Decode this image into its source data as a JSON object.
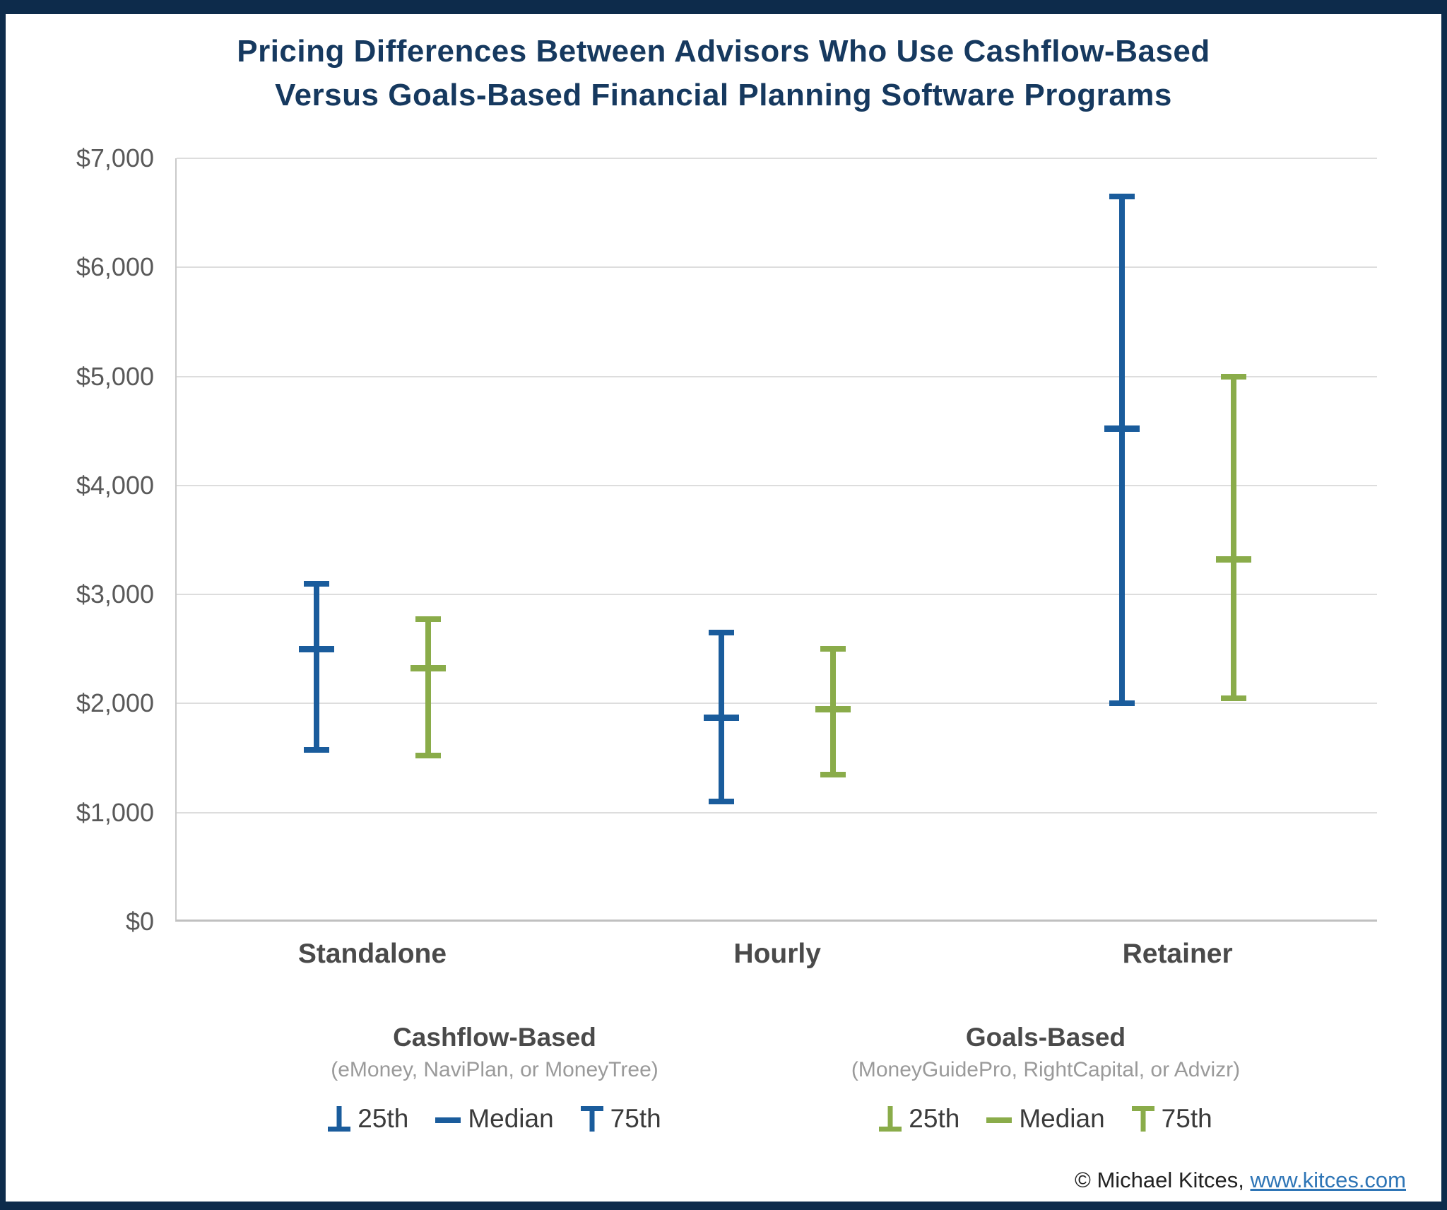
{
  "title": {
    "line1": "Pricing Differences Between Advisors Who Use Cashflow-Based",
    "line2": "Versus Goals-Based Financial Planning Software Programs"
  },
  "footer": {
    "copyright": "© Michael Kitces, ",
    "link_text": "www.kitces.com"
  },
  "colors": {
    "cashflow_blue": "#1A5C9C",
    "goals_green": "#8AAC4A",
    "title_navy": "#16395F",
    "frame_navy": "#0D2B4B",
    "gridline_gray": "#DDDDDD",
    "axis_gray": "#C0C0C0",
    "link_blue": "#2E75B6"
  },
  "chart_data": {
    "type": "errorbar",
    "title": "Pricing Differences Between Advisors Who Use Cashflow-Based Versus Goals-Based Financial Planning Software Programs",
    "categories": [
      "Standalone",
      "Hourly",
      "Retainer"
    ],
    "y_axis": {
      "min": 0,
      "max": 7000,
      "tick_step": 1000,
      "tick_labels": [
        "$0",
        "$1,000",
        "$2,000",
        "$3,000",
        "$4,000",
        "$5,000",
        "$6,000",
        "$7,000"
      ],
      "grid": true
    },
    "legend_labels": [
      "25th",
      "Median",
      "75th"
    ],
    "legend_position": "bottom",
    "series": [
      {
        "name": "Cashflow-Based",
        "subtitle": "(eMoney, NaviPlan, or MoneyTree)",
        "color": "#1A5C9C",
        "points": [
          {
            "category": "Standalone",
            "p25": 1575,
            "median": 2500,
            "p75": 3100
          },
          {
            "category": "Hourly",
            "p25": 1100,
            "median": 1875,
            "p75": 2650
          },
          {
            "category": "Retainer",
            "p25": 2000,
            "median": 4525,
            "p75": 6650
          }
        ]
      },
      {
        "name": "Goals-Based",
        "subtitle": "(MoneyGuidePro, RightCapital, or Advizr)",
        "color": "#8AAC4A",
        "points": [
          {
            "category": "Standalone",
            "p25": 1525,
            "median": 2325,
            "p75": 2775
          },
          {
            "category": "Hourly",
            "p25": 1350,
            "median": 1950,
            "p75": 2500
          },
          {
            "category": "Retainer",
            "p25": 2050,
            "median": 3325,
            "p75": 5000
          }
        ]
      }
    ]
  }
}
